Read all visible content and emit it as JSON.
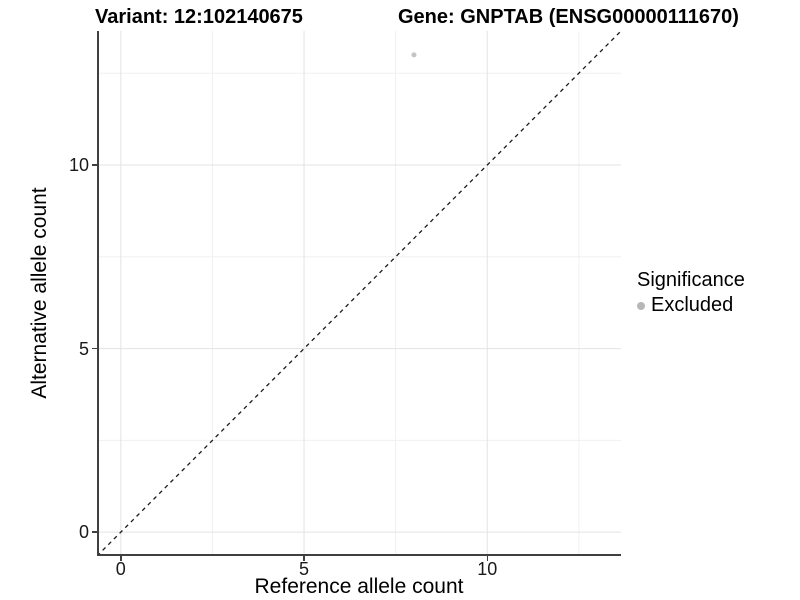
{
  "figure": {
    "title_left": "Variant: 12:102140675",
    "title_right": "Gene: GNPTAB (ENSG00000111670)"
  },
  "chart_data": {
    "type": "scatter",
    "title_left": "Variant: 12:102140675",
    "title_right": "Gene: GNPTAB (ENSG00000111670)",
    "xlabel": "Reference allele count",
    "ylabel": "Alternative allele count",
    "xlim": [
      -0.65,
      13.65
    ],
    "ylim": [
      -0.65,
      13.65
    ],
    "x_major_ticks": [
      0,
      5,
      10
    ],
    "y_major_ticks": [
      0,
      5,
      10
    ],
    "x_minor_gridlines": [
      2.5,
      7.5,
      12.5
    ],
    "y_minor_gridlines": [
      2.5,
      7.5,
      12.5
    ],
    "grid": "on",
    "points": [
      {
        "x": 8,
        "y": 13,
        "significance": "Excluded"
      }
    ],
    "reference_line": {
      "type": "identity (y = x)",
      "style": "dashed",
      "x1": -0.65,
      "y1": -0.65,
      "x2": 13.65,
      "y2": 13.65
    },
    "legend": {
      "title": "Significance",
      "position": "right",
      "entries": [
        {
          "label": "Excluded",
          "color": "#bebebe"
        }
      ]
    }
  },
  "colors": {
    "background": "#ffffff",
    "axis_line": "#404040",
    "grid_major": "#e3e3e3",
    "grid_minor": "#f0f0f0",
    "point": "#c4c4c4",
    "legend_key": "#b7b7b7",
    "reference_line": "#1a1a1a",
    "tick_text": "#1a1a1a"
  }
}
